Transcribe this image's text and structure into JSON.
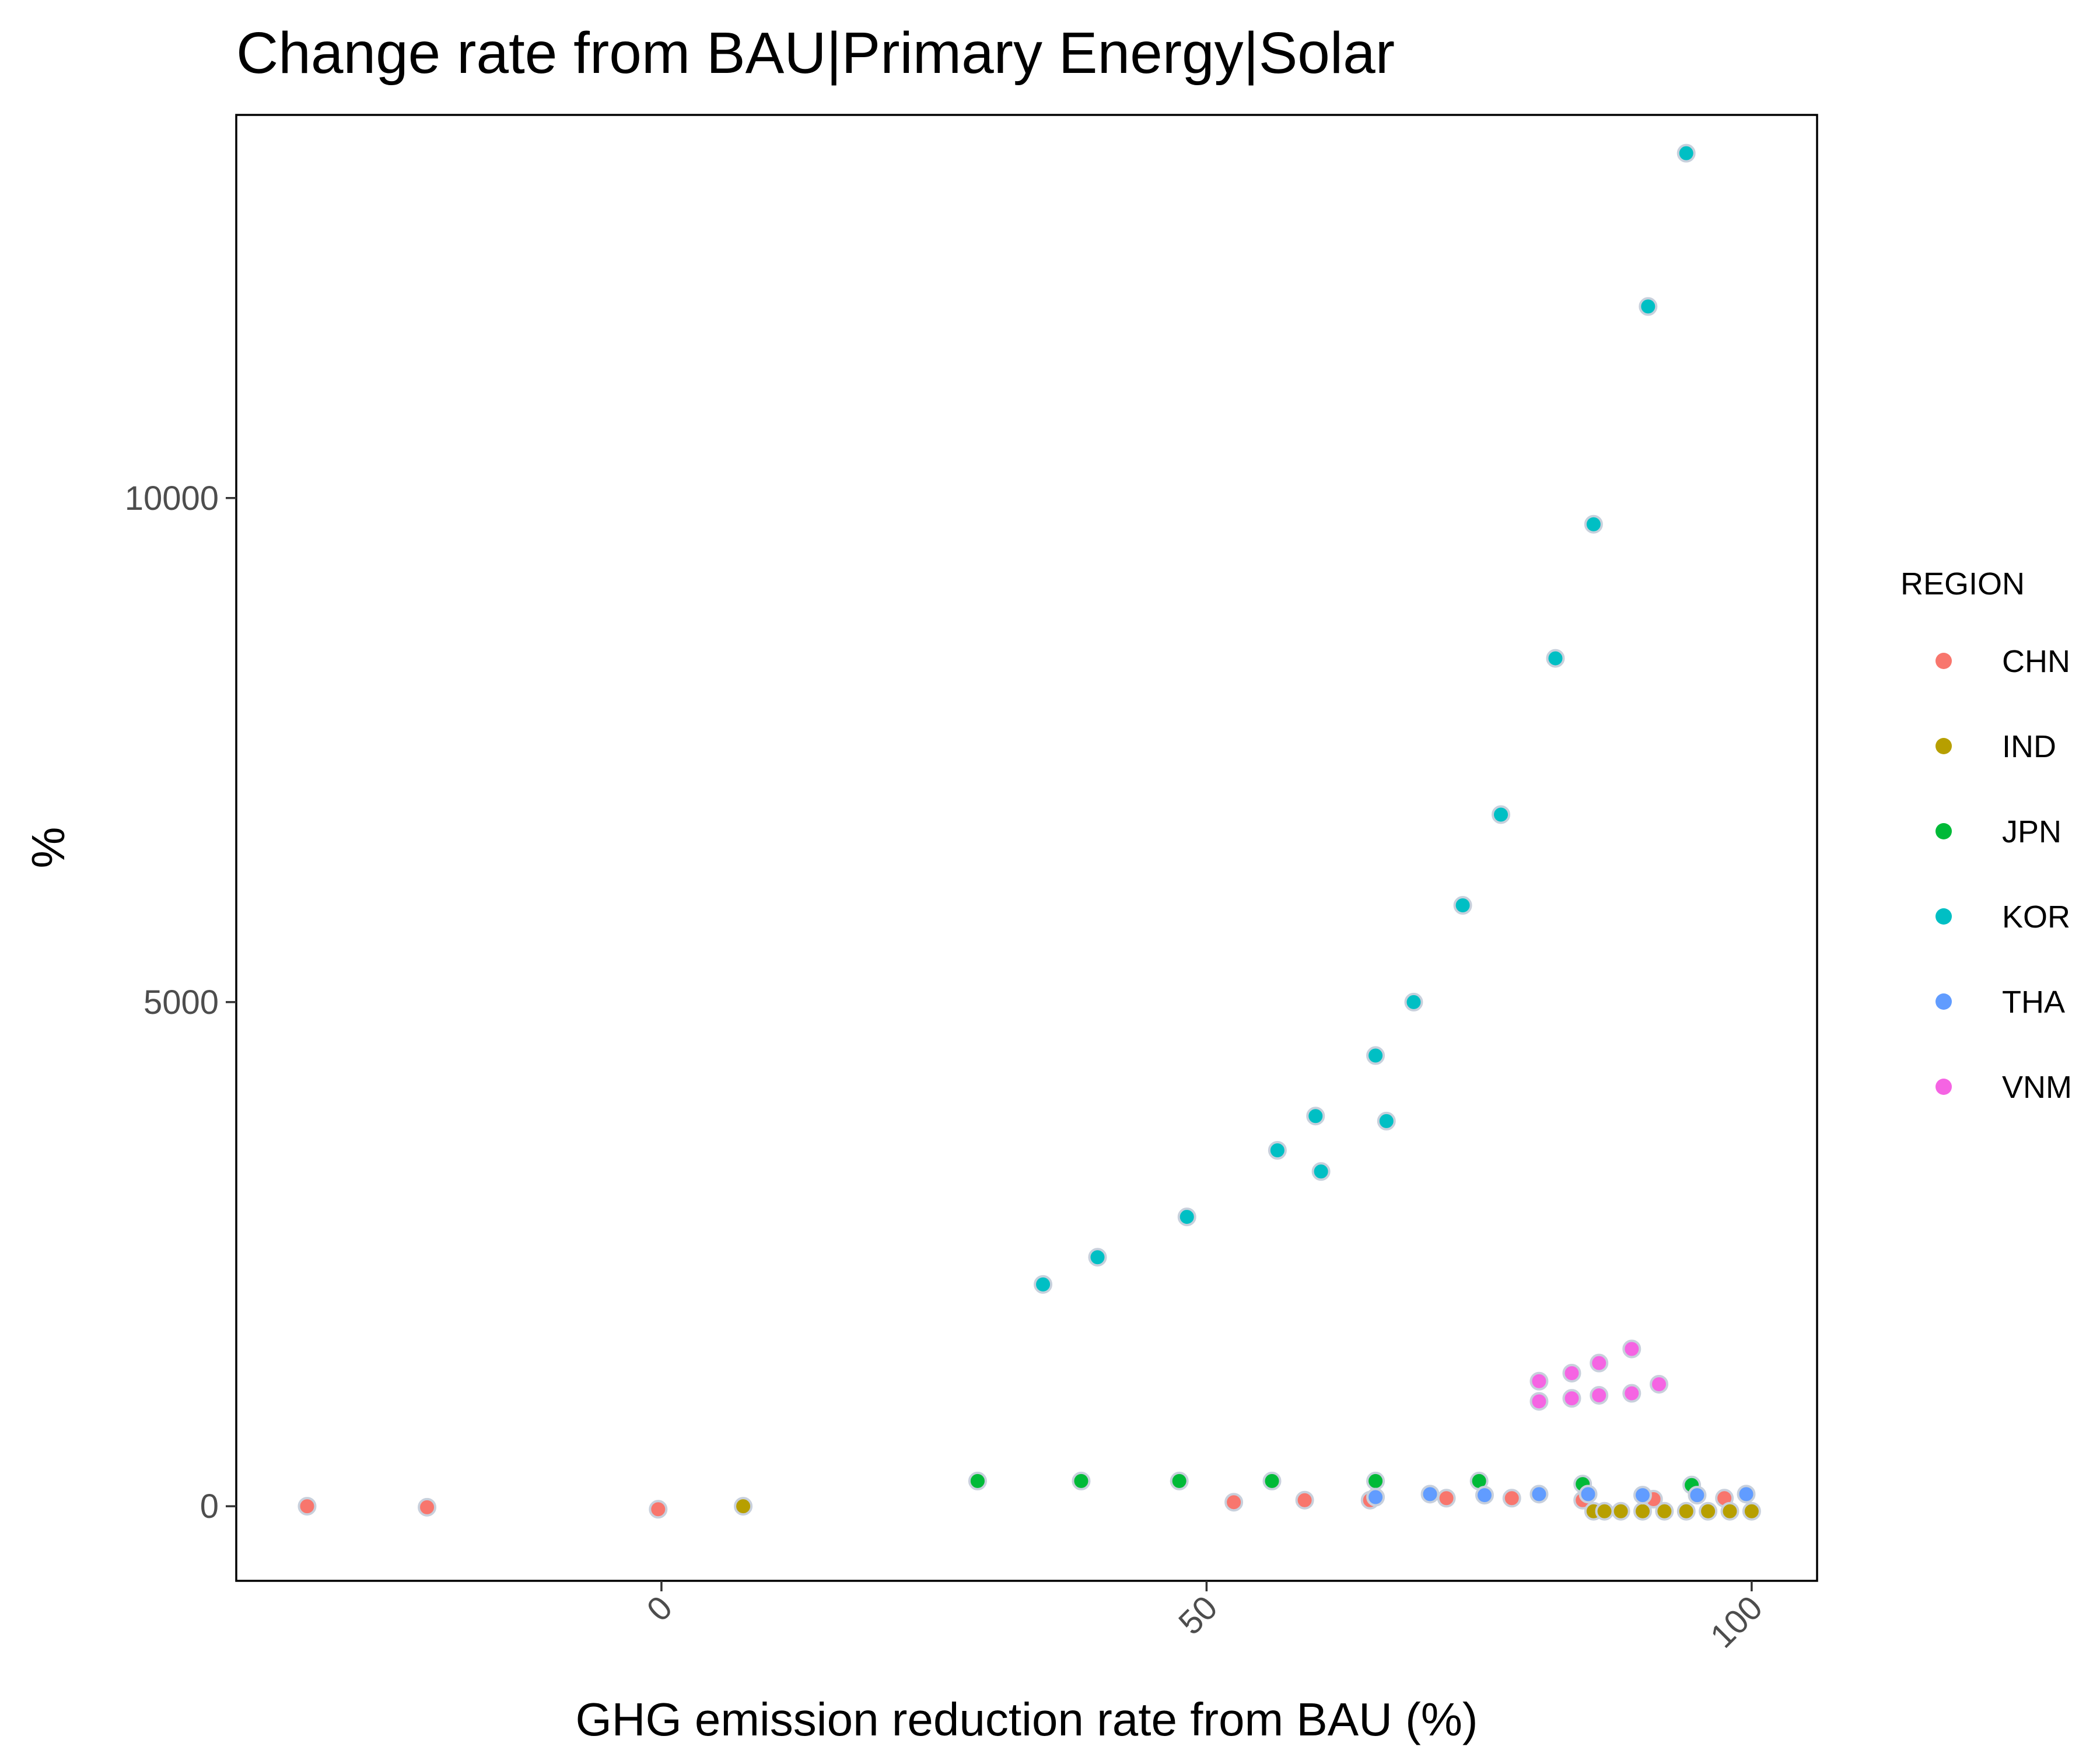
{
  "chart_data": {
    "type": "scatter",
    "title": "Change rate from BAU|Primary Energy|Solar",
    "xlabel": "GHG emission reduction rate from BAU (%)",
    "ylabel": "%",
    "xlim": [
      -39,
      106
    ],
    "ylim": [
      -740,
      13800
    ],
    "x_ticks": [
      0,
      50,
      100
    ],
    "y_ticks": [
      0,
      5000,
      10000
    ],
    "grid": false,
    "legend": {
      "title": "REGION",
      "position": "right"
    },
    "series": [
      {
        "name": "CHN",
        "color": "#F8766D",
        "points": [
          {
            "x": -32.5,
            "y": 0
          },
          {
            "x": -21.5,
            "y": -10
          },
          {
            "x": -0.3,
            "y": -30
          },
          {
            "x": 52.5,
            "y": 40
          },
          {
            "x": 59,
            "y": 60
          },
          {
            "x": 65,
            "y": 60
          },
          {
            "x": 72,
            "y": 80
          },
          {
            "x": 78,
            "y": 80
          },
          {
            "x": 84.5,
            "y": 60
          },
          {
            "x": 91,
            "y": 70
          },
          {
            "x": 97.5,
            "y": 80
          }
        ]
      },
      {
        "name": "IND",
        "color": "#B79F00",
        "points": [
          {
            "x": 7.5,
            "y": 0
          },
          {
            "x": 85.5,
            "y": -50
          },
          {
            "x": 86.5,
            "y": -50
          },
          {
            "x": 88,
            "y": -50
          },
          {
            "x": 90,
            "y": -50
          },
          {
            "x": 92,
            "y": -50
          },
          {
            "x": 94,
            "y": -50
          },
          {
            "x": 96,
            "y": -50
          },
          {
            "x": 98,
            "y": -50
          },
          {
            "x": 100,
            "y": -50
          }
        ]
      },
      {
        "name": "JPN",
        "color": "#00BA38",
        "points": [
          {
            "x": 29,
            "y": 250
          },
          {
            "x": 38.5,
            "y": 250
          },
          {
            "x": 47.5,
            "y": 250
          },
          {
            "x": 56,
            "y": 250
          },
          {
            "x": 65.5,
            "y": 250
          },
          {
            "x": 75,
            "y": 250
          },
          {
            "x": 84.5,
            "y": 220
          },
          {
            "x": 94.5,
            "y": 210
          }
        ]
      },
      {
        "name": "KOR",
        "color": "#00BFC4",
        "points": [
          {
            "x": 35,
            "y": 2200
          },
          {
            "x": 40,
            "y": 2470
          },
          {
            "x": 48.2,
            "y": 2870
          },
          {
            "x": 56.5,
            "y": 3530
          },
          {
            "x": 60,
            "y": 3870
          },
          {
            "x": 60.5,
            "y": 3320
          },
          {
            "x": 65.5,
            "y": 4470
          },
          {
            "x": 66.5,
            "y": 3820
          },
          {
            "x": 69,
            "y": 5000
          },
          {
            "x": 73.5,
            "y": 5960
          },
          {
            "x": 77,
            "y": 6860
          },
          {
            "x": 82,
            "y": 8410
          },
          {
            "x": 85.5,
            "y": 9740
          },
          {
            "x": 90.5,
            "y": 11900
          },
          {
            "x": 94,
            "y": 13420
          }
        ]
      },
      {
        "name": "THA",
        "color": "#619CFF",
        "points": [
          {
            "x": 65.5,
            "y": 90
          },
          {
            "x": 70.5,
            "y": 120
          },
          {
            "x": 75.5,
            "y": 110
          },
          {
            "x": 80.5,
            "y": 120
          },
          {
            "x": 85,
            "y": 120
          },
          {
            "x": 90,
            "y": 110
          },
          {
            "x": 95,
            "y": 110
          },
          {
            "x": 99.5,
            "y": 120
          }
        ]
      },
      {
        "name": "VNM",
        "color": "#F564E3",
        "points": [
          {
            "x": 80.5,
            "y": 1040
          },
          {
            "x": 80.5,
            "y": 1240
          },
          {
            "x": 83.5,
            "y": 1070
          },
          {
            "x": 83.5,
            "y": 1320
          },
          {
            "x": 86,
            "y": 1100
          },
          {
            "x": 86,
            "y": 1420
          },
          {
            "x": 89,
            "y": 1120
          },
          {
            "x": 89,
            "y": 1560
          },
          {
            "x": 91.5,
            "y": 1210
          }
        ]
      }
    ]
  }
}
